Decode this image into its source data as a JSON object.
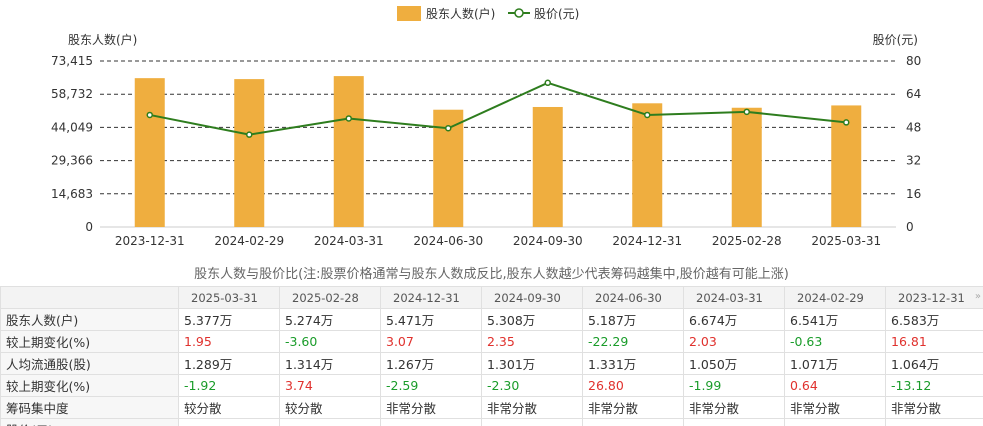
{
  "chart_data": {
    "type": "bar+line",
    "categories": [
      "2023-12-31",
      "2024-02-29",
      "2024-03-31",
      "2024-06-30",
      "2024-09-30",
      "2024-12-31",
      "2025-02-28",
      "2025-03-31"
    ],
    "series": [
      {
        "name": "股东人数(户)",
        "type": "bar",
        "axis": "left",
        "color": "#EFAE3F",
        "values": [
          65830,
          65410,
          66740,
          51870,
          53080,
          54710,
          52740,
          53770
        ]
      },
      {
        "name": "股价(元)",
        "type": "line",
        "axis": "right",
        "color": "#2E7D1E",
        "values": [
          54.0,
          44.5,
          52.3,
          47.6,
          69.5,
          54.0,
          55.5,
          50.4
        ]
      }
    ],
    "left_axis": {
      "label": "股东人数(户)",
      "ticks": [
        "73,415",
        "58,732",
        "44,049",
        "29,366",
        "14,683",
        "0"
      ],
      "ylim": [
        0,
        73415
      ]
    },
    "right_axis": {
      "label": "股价(元)",
      "ticks": [
        "80",
        "64",
        "48",
        "32",
        "16",
        "0"
      ],
      "ylim": [
        0,
        80
      ]
    },
    "grid": "horizontal-dashed",
    "legend_position": "top-center"
  },
  "caption": "股东人数与股价比(注:股票价格通常与股东人数成反比,股东人数越少代表筹码越集中,股价越有可能上涨)",
  "table": {
    "headers": [
      "2025-03-31",
      "2025-02-28",
      "2024-12-31",
      "2024-09-30",
      "2024-06-30",
      "2024-03-31",
      "2024-02-29",
      "2023-12-31"
    ],
    "more_icon": "double-chevron-right-icon",
    "rows": [
      {
        "label": "股东人数(户)",
        "cells": [
          "5.377万",
          "5.274万",
          "5.471万",
          "5.308万",
          "5.187万",
          "6.674万",
          "6.541万",
          "6.583万"
        ]
      },
      {
        "label": "较上期变化(%)",
        "cells": [
          "1.95",
          "-3.60",
          "3.07",
          "2.35",
          "-22.29",
          "2.03",
          "-0.63",
          "16.81"
        ]
      },
      {
        "label": "人均流通股(股)",
        "cells": [
          "1.289万",
          "1.314万",
          "1.267万",
          "1.301万",
          "1.331万",
          "1.050万",
          "1.071万",
          "1.064万"
        ]
      },
      {
        "label": "较上期变化(%)",
        "cells": [
          "-1.92",
          "3.74",
          "-2.59",
          "-2.30",
          "26.80",
          "-1.99",
          "0.64",
          "-13.12"
        ]
      },
      {
        "label": "筹码集中度",
        "cells": [
          "较分散",
          "较分散",
          "非常分散",
          "非常分散",
          "非常分散",
          "非常分散",
          "非常分散",
          "非常分散"
        ]
      },
      {
        "label": "股价(元)",
        "cells": [
          "",
          "",
          "",
          "",
          "",
          "",
          "",
          ""
        ]
      }
    ]
  }
}
